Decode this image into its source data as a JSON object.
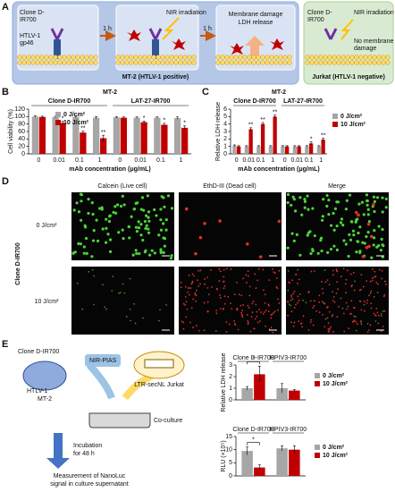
{
  "panel_labels": [
    "A",
    "B",
    "C",
    "D",
    "E"
  ],
  "diagram_a": {
    "clone_label": [
      "Clone D-",
      "IR700"
    ],
    "antigen_label": [
      "HTLV-1",
      "gp46"
    ],
    "step1": "1 h",
    "nir": "NIR irradiation",
    "step2": "1 h",
    "result": [
      "Membrane damage",
      "LDH release"
    ],
    "cell_line": "MT-2 (HTLV-1 positive)",
    "control_clone": [
      "Clone D-",
      "IR700"
    ],
    "control_nir": "NIR irradiation",
    "control_result": [
      "No membrane",
      "damage"
    ],
    "control_cell_line": "Jurkat (HTLV-1 negative)"
  },
  "panel_d": {
    "columns": [
      "Calcein (Live cell)",
      "EthD-III (Dead cell)",
      "Merge"
    ],
    "rows": [
      "0 J/cm²",
      "10 J/cm²"
    ],
    "row_group": "Clone D-IR700"
  },
  "diagram_e": {
    "clone": "Clone D-IR700",
    "nir": "NIR-PIAS",
    "virus": "HTLV-1",
    "cell": "MT-2",
    "reporter_cell": "LTR-secNL Jurkat",
    "coculture": "Co-culture",
    "incubation": [
      "Incubation",
      "for 48 h"
    ],
    "measurement": [
      "Measurement of NanoLuc",
      "signal in culture supernatant"
    ]
  },
  "chart_data": [
    {
      "type": "bar",
      "title": "MT-2",
      "y_label": "Cell viability (%)",
      "x_label": "mAb concentration (μg/mL)",
      "groups": [
        "Clone D-IR700",
        "LAT-27-IR700"
      ],
      "categories": [
        "0",
        "0.01",
        "0.1",
        "1",
        "0",
        "0.01",
        "0.1",
        "1"
      ],
      "series": [
        {
          "name": "0 J/cm²",
          "color": "#a6a6a6",
          "values": [
            100,
            99,
            99,
            97,
            98,
            97,
            97,
            96
          ],
          "errors": [
            2,
            2,
            2,
            3,
            2,
            2,
            2,
            3
          ]
        },
        {
          "name": "10 J/cm²",
          "color": "#c00000",
          "values": [
            99,
            83,
            57,
            42,
            97,
            85,
            78,
            70
          ],
          "errors": [
            2,
            4,
            4,
            8,
            2,
            3,
            4,
            5
          ],
          "significance": [
            null,
            "*",
            "**",
            "**",
            null,
            "*",
            "*",
            "*"
          ]
        }
      ],
      "ylim": [
        0,
        120
      ],
      "yticks": [
        0,
        20,
        40,
        60,
        80,
        100,
        120
      ],
      "legend": "upper left"
    },
    {
      "type": "bar",
      "title": "MT-2",
      "y_label": "Relative LDH release",
      "x_label": "mAb concentration (μg/mL)",
      "groups": [
        "Clone D-IR700",
        "LAT-27-IR700"
      ],
      "categories": [
        "0",
        "0.01",
        "0.1",
        "1",
        "0",
        "0.01",
        "0.1",
        "1"
      ],
      "series": [
        {
          "name": "0 J/cm²",
          "color": "#a6a6a6",
          "values": [
            1.1,
            1.0,
            1.0,
            1.0,
            1.0,
            1.0,
            1.0,
            1.0
          ],
          "errors": [
            0.1,
            0.1,
            0.1,
            0.1,
            0.1,
            0.1,
            0.1,
            0.1
          ]
        },
        {
          "name": "10 J/cm²",
          "color": "#c00000",
          "values": [
            1.0,
            3.3,
            4.0,
            5.0,
            1.0,
            1.0,
            1.4,
            1.9
          ],
          "errors": [
            0.1,
            0.2,
            0.2,
            0.2,
            0.1,
            0.1,
            0.2,
            0.2
          ],
          "significance": [
            null,
            "**",
            "**",
            "**",
            null,
            null,
            "*",
            "**"
          ]
        }
      ],
      "ylim": [
        0,
        6
      ],
      "yticks": [
        0,
        1,
        2,
        3,
        4,
        5,
        6
      ],
      "legend": "right"
    },
    {
      "type": "bar",
      "y_label": "Relative LDH release",
      "categories": [
        "Clone D-IR700",
        "HPIV3-IR700"
      ],
      "category_label_position": "top",
      "series": [
        {
          "name": "0 J/cm²",
          "color": "#a6a6a6",
          "values": [
            1.0,
            1.0
          ],
          "errors": [
            0.15,
            0.4
          ]
        },
        {
          "name": "10 J/cm²",
          "color": "#c00000",
          "values": [
            2.2,
            0.8
          ],
          "errors": [
            0.7,
            0.1
          ]
        }
      ],
      "bracket_significance": [
        "*",
        null
      ],
      "ylim": [
        0,
        3
      ],
      "yticks": [
        0,
        1,
        2,
        3
      ],
      "legend": "right"
    },
    {
      "type": "bar",
      "y_label": "RLU (×10⁵)",
      "categories": [
        "Clone D-IR700",
        "HPIV3-IR700"
      ],
      "category_label_position": "top",
      "series": [
        {
          "name": "0 J/cm²",
          "color": "#a6a6a6",
          "values": [
            9.5,
            10.5
          ],
          "errors": [
            1.5,
            1.0
          ]
        },
        {
          "name": "10 J/cm²",
          "color": "#c00000",
          "values": [
            3.2,
            10.0
          ],
          "errors": [
            1.0,
            1.5
          ]
        }
      ],
      "bracket_significance": [
        "*",
        null
      ],
      "ylim": [
        0,
        15
      ],
      "yticks": [
        0,
        5,
        10,
        15
      ],
      "legend": "right"
    }
  ]
}
